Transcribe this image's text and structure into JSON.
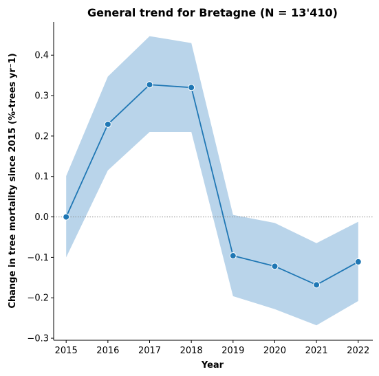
{
  "chart_data": {
    "type": "line",
    "title": "General trend for Bretagne  (N = 13'410)",
    "xlabel": "Year",
    "ylabel": "Change in tree mortality since 2015 (%-trees yr⁻1)",
    "x": [
      "2015",
      "2016",
      "2017",
      "2018",
      "2019",
      "2020",
      "2021",
      "2022"
    ],
    "y": [
      0.0,
      0.229,
      0.327,
      0.32,
      -0.096,
      -0.122,
      -0.168,
      -0.111
    ],
    "ci_lower": [
      -0.1,
      0.115,
      0.21,
      0.21,
      -0.196,
      -0.228,
      -0.268,
      -0.208
    ],
    "ci_upper": [
      0.101,
      0.347,
      0.447,
      0.43,
      0.005,
      -0.015,
      -0.065,
      -0.012
    ],
    "xlim": [
      2014.7,
      2022.35
    ],
    "ylim": [
      -0.305,
      0.482
    ],
    "yticks": [
      "−0.3",
      "−0.2",
      "−0.1",
      "0.0",
      "0.1",
      "0.2",
      "0.3",
      "0.4"
    ],
    "ytick_values": [
      -0.3,
      -0.2,
      -0.1,
      0.0,
      0.1,
      0.2,
      0.3,
      0.4
    ],
    "reference_line": 0,
    "grid": false,
    "colors": {
      "line": "#1f77b4",
      "band": "#b9d4ea",
      "reference": "#888888"
    }
  }
}
